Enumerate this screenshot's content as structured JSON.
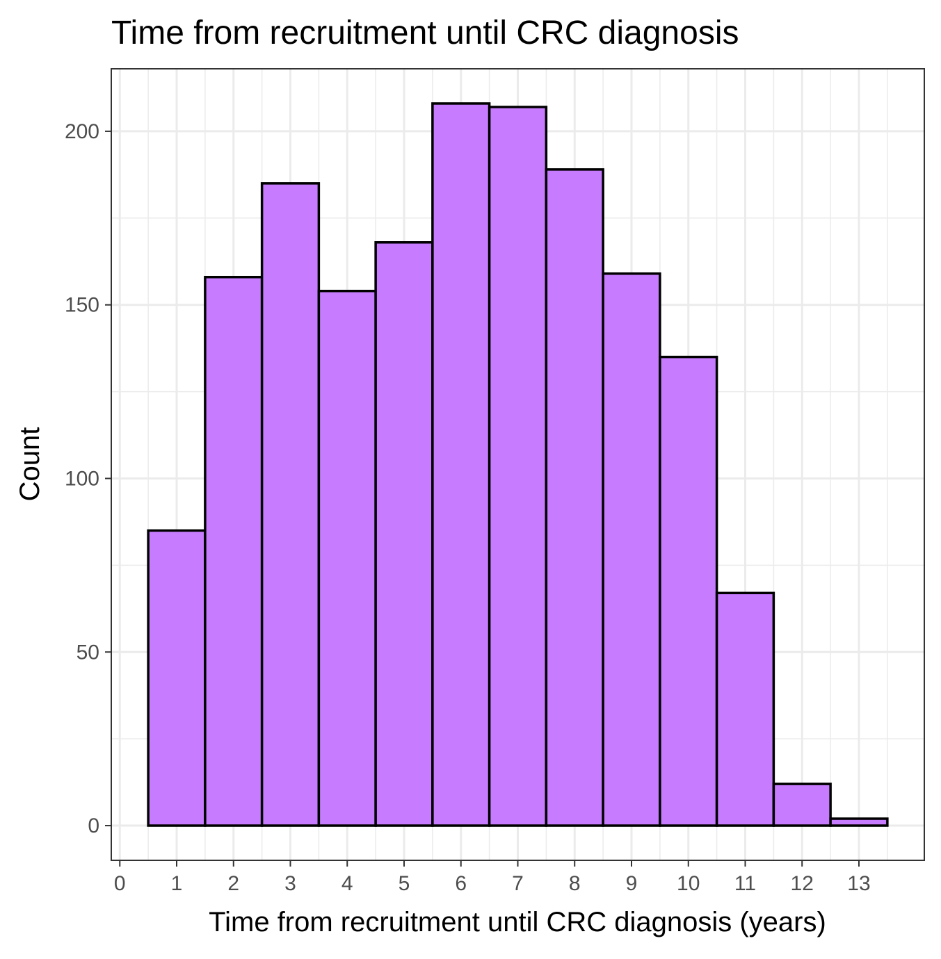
{
  "chart_data": {
    "type": "bar",
    "title": "Time from recruitment until CRC diagnosis",
    "xlabel": "Time from recruitment until CRC diagnosis (years)",
    "ylabel": "Count",
    "bins": [
      {
        "center": 1,
        "value": 85
      },
      {
        "center": 2,
        "value": 158
      },
      {
        "center": 3,
        "value": 185
      },
      {
        "center": 4,
        "value": 154
      },
      {
        "center": 5,
        "value": 168
      },
      {
        "center": 6,
        "value": 208
      },
      {
        "center": 7,
        "value": 207
      },
      {
        "center": 8,
        "value": 189
      },
      {
        "center": 9,
        "value": 159
      },
      {
        "center": 10,
        "value": 135
      },
      {
        "center": 11,
        "value": 67
      },
      {
        "center": 12,
        "value": 12
      },
      {
        "center": 13,
        "value": 2
      }
    ],
    "bin_width": 1,
    "xlim": [
      -0.15,
      14.15
    ],
    "ylim": [
      -10,
      218
    ],
    "x_ticks": [
      "0",
      "1",
      "2",
      "3",
      "4",
      "5",
      "6",
      "7",
      "8",
      "9",
      "10",
      "11",
      "12",
      "13"
    ],
    "y_ticks": [
      "0",
      "50",
      "100",
      "150",
      "200"
    ],
    "y_tick_values": [
      0,
      50,
      100,
      150,
      200
    ],
    "fill_color": "#c77cff",
    "edge_color": "#000000",
    "grid": true,
    "background": "#ffffff"
  }
}
